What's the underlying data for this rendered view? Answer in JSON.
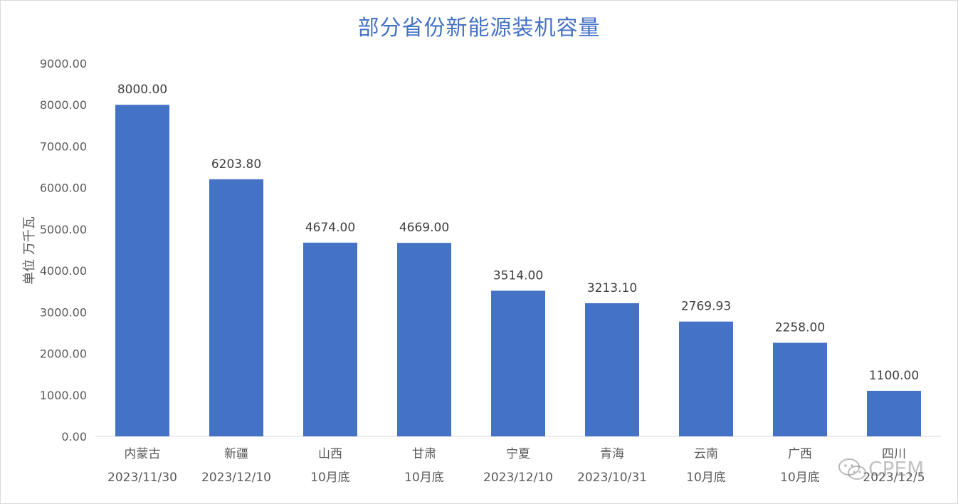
{
  "chart_data": {
    "type": "bar",
    "title": "部分省份新能源装机容量",
    "ylabel": "单位 万千瓦",
    "xlabel": "",
    "ylim": [
      0,
      9000
    ],
    "yticks": [
      "0.00",
      "1000.00",
      "2000.00",
      "3000.00",
      "4000.00",
      "5000.00",
      "6000.00",
      "7000.00",
      "8000.00",
      "9000.00"
    ],
    "categories": [
      "内蒙古",
      "新疆",
      "山西",
      "甘肃",
      "宁夏",
      "青海",
      "云南",
      "广西",
      "四川"
    ],
    "dates": [
      "2023/11/30",
      "2023/12/10",
      "10月底",
      "10月底",
      "2023/12/10",
      "2023/10/31",
      "10月底",
      "10月底",
      "2023/12/5"
    ],
    "values": [
      8000.0,
      6203.8,
      4674.0,
      4669.0,
      3514.0,
      3213.1,
      2769.93,
      2258.0,
      1100.0
    ],
    "value_labels": [
      "8000.00",
      "6203.80",
      "4674.00",
      "4669.00",
      "3514.00",
      "3213.10",
      "2769.93",
      "2258.00",
      "1100.00"
    ],
    "grid": false,
    "legend": "none"
  },
  "colors": {
    "bar": "#4472c4",
    "title": "#4472c4",
    "axis_text": "#595959",
    "label_text": "#404040"
  },
  "watermark": {
    "text": "CPEM",
    "icon": "wechat-icon"
  }
}
